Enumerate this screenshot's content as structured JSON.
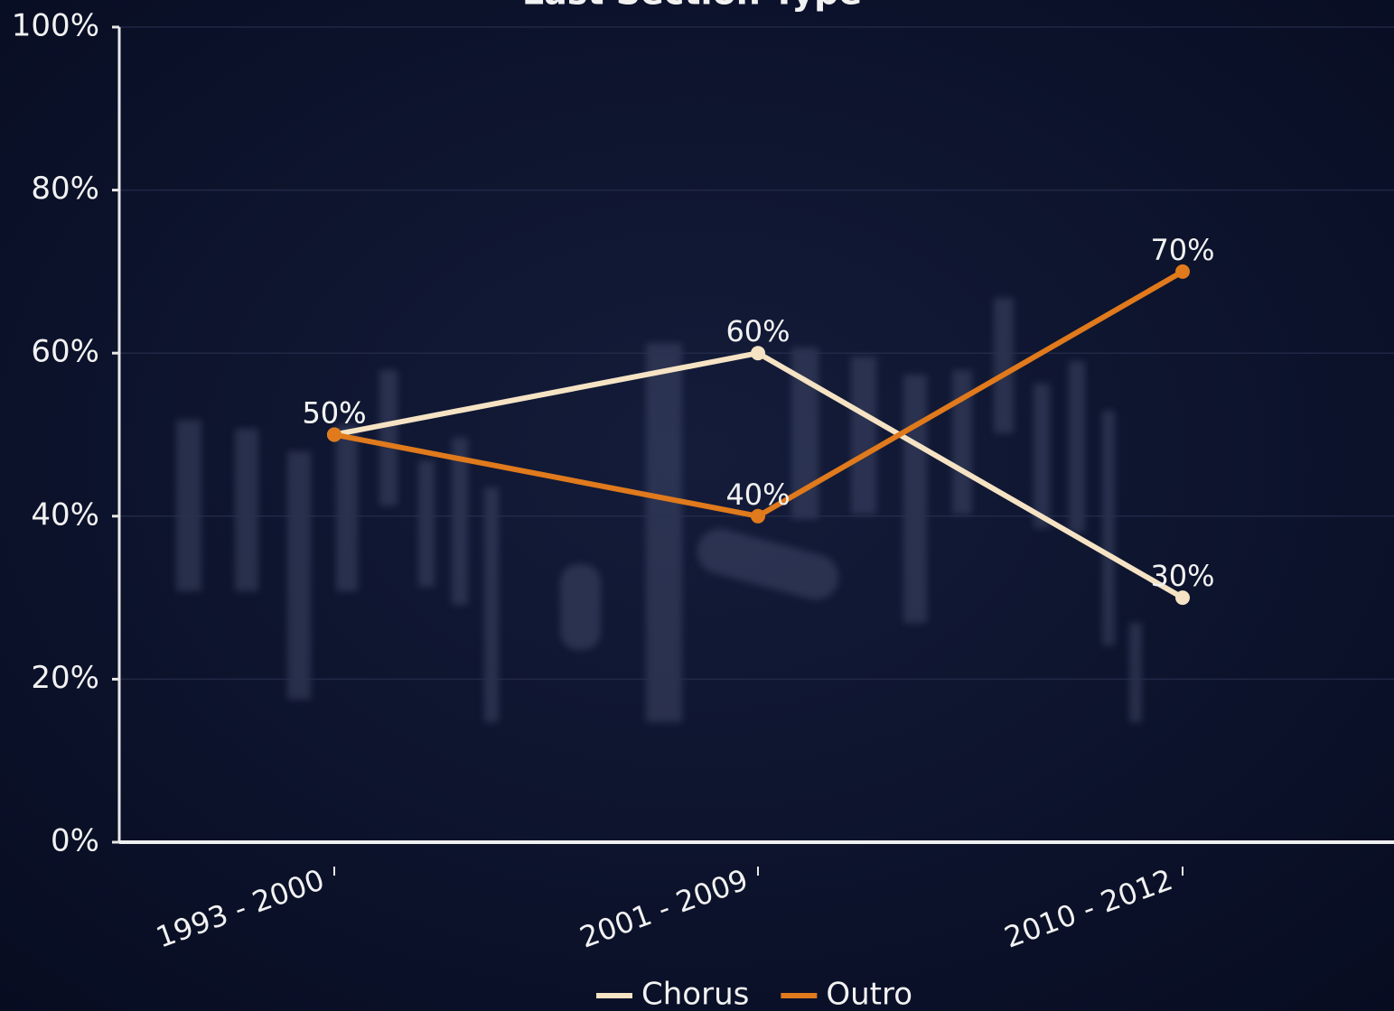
{
  "chart_data": {
    "type": "line",
    "title": "Last Section Type",
    "categories": [
      "1993 - 2000",
      "2001 - 2009",
      "2010 - 2012"
    ],
    "series": [
      {
        "name": "Chorus",
        "color": "#f5e3c4",
        "values": [
          50,
          60,
          30
        ],
        "value_labels": [
          "50%",
          "60%",
          "30%"
        ]
      },
      {
        "name": "Outro",
        "color": "#e07a1c",
        "values": [
          50,
          40,
          70
        ],
        "value_labels": [
          "50%",
          "40%",
          "70%"
        ]
      }
    ],
    "ylim": [
      0,
      100
    ],
    "yticks": [
      {
        "value": 0,
        "label": "0%"
      },
      {
        "value": 20,
        "label": "20%"
      },
      {
        "value": 40,
        "label": "40%"
      },
      {
        "value": 60,
        "label": "60%"
      },
      {
        "value": 80,
        "label": "80%"
      },
      {
        "value": 100,
        "label": "100%"
      }
    ],
    "grid": true,
    "legend": "bottom"
  }
}
